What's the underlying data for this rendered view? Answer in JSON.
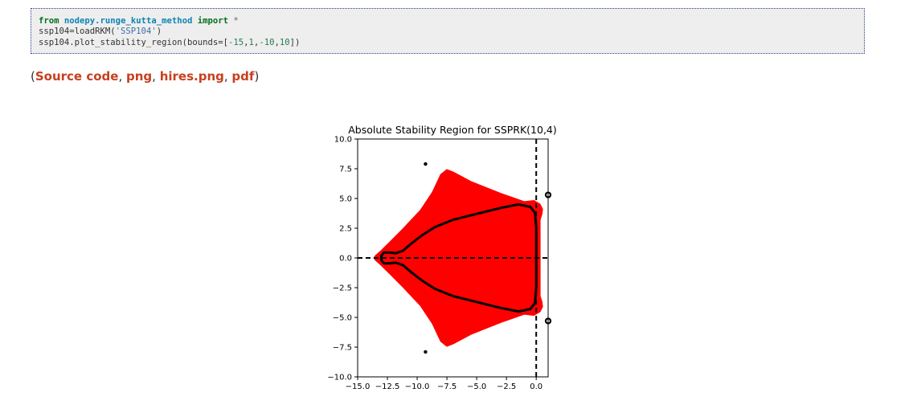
{
  "code": {
    "line1": {
      "kw_from": "from",
      "module": "nodepy.runge_kutta_method",
      "kw_import": "import",
      "star": "*"
    },
    "line2": {
      "prefix": "ssp104=loadRKM(",
      "string": "'SSP104'",
      "suffix": ")"
    },
    "line3": {
      "prefix": "ssp104.plot_stability_region(bounds=[",
      "n1": "-15",
      "c1": ",",
      "n2": "1",
      "c2": ",",
      "n3": "-10",
      "c3": ",",
      "n4": "10",
      "suffix": "])"
    }
  },
  "links": {
    "open": "(",
    "source_code": "Source code",
    "png": "png",
    "hires_png": "hires.png",
    "pdf": "pdf",
    "sep1": ", ",
    "sep2": ", ",
    "sep3": ", ",
    "close": ")"
  },
  "chart_data": {
    "type": "area",
    "title": "Absolute Stability Region for SSPRK(10,4)",
    "xlabel": "",
    "ylabel": "",
    "xlim": [
      -15,
      1
    ],
    "ylim": [
      -10,
      10
    ],
    "xticks": [
      -15.0,
      -12.5,
      -10.0,
      -7.5,
      -5.0,
      -2.5,
      0.0
    ],
    "xtick_labels": [
      "−15.0",
      "−12.5",
      "−10.0",
      "−7.5",
      "−5.0",
      "−2.5",
      "0.0"
    ],
    "yticks": [
      10.0,
      7.5,
      5.0,
      2.5,
      0.0,
      -2.5,
      -5.0,
      -7.5,
      -10.0
    ],
    "ytick_labels": [
      "10.0",
      "7.5",
      "5.0",
      "2.5",
      "0.0",
      "−2.5",
      "−5.0",
      "−7.5",
      "−10.0"
    ],
    "stability_region": {
      "color": "#ff0000",
      "boundary": [
        [
          0.3,
          0.0
        ],
        [
          0.3,
          2.0
        ],
        [
          0.3,
          3.2
        ],
        [
          0.45,
          3.7
        ],
        [
          0.5,
          4.1
        ],
        [
          0.3,
          4.5
        ],
        [
          -0.2,
          4.8
        ],
        [
          -1.0,
          4.7
        ],
        [
          -3.0,
          5.4
        ],
        [
          -5.5,
          6.4
        ],
        [
          -7.0,
          7.2
        ],
        [
          -7.5,
          7.4
        ],
        [
          -8.0,
          7.0
        ],
        [
          -8.7,
          5.5
        ],
        [
          -9.7,
          4.0
        ],
        [
          -11.3,
          2.3
        ],
        [
          -12.3,
          1.3
        ],
        [
          -13.0,
          0.6
        ],
        [
          -13.5,
          0.15
        ],
        [
          -13.6,
          0.0
        ],
        [
          -13.5,
          -0.15
        ],
        [
          -13.0,
          -0.6
        ],
        [
          -12.3,
          -1.3
        ],
        [
          -11.3,
          -2.3
        ],
        [
          -9.7,
          -4.0
        ],
        [
          -8.7,
          -5.5
        ],
        [
          -8.0,
          -7.0
        ],
        [
          -7.5,
          -7.4
        ],
        [
          -7.0,
          -7.2
        ],
        [
          -5.5,
          -6.4
        ],
        [
          -3.0,
          -5.4
        ],
        [
          -1.0,
          -4.7
        ],
        [
          -0.2,
          -4.8
        ],
        [
          0.3,
          -4.5
        ],
        [
          0.5,
          -4.1
        ],
        [
          0.45,
          -3.7
        ],
        [
          0.3,
          -3.2
        ],
        [
          0.3,
          -2.0
        ]
      ]
    },
    "order_star_curve": {
      "color": "#000000",
      "points": [
        [
          0.0,
          0.0
        ],
        [
          0.0,
          2.5
        ],
        [
          -0.1,
          3.8
        ],
        [
          -0.5,
          4.3
        ],
        [
          -1.5,
          4.5
        ],
        [
          -3.0,
          4.2
        ],
        [
          -5.0,
          3.7
        ],
        [
          -7.0,
          3.2
        ],
        [
          -8.5,
          2.6
        ],
        [
          -9.6,
          1.9
        ],
        [
          -10.5,
          1.2
        ],
        [
          -11.2,
          0.6
        ],
        [
          -11.8,
          0.4
        ],
        [
          -12.3,
          0.45
        ],
        [
          -12.8,
          0.45
        ],
        [
          -13.0,
          0.2
        ],
        [
          -13.0,
          -0.2
        ],
        [
          -12.8,
          -0.45
        ],
        [
          -12.3,
          -0.45
        ],
        [
          -11.8,
          -0.4
        ],
        [
          -11.2,
          -0.6
        ],
        [
          -10.5,
          -1.2
        ],
        [
          -9.6,
          -1.9
        ],
        [
          -8.5,
          -2.6
        ],
        [
          -7.0,
          -3.2
        ],
        [
          -5.0,
          -3.7
        ],
        [
          -3.0,
          -4.2
        ],
        [
          -1.5,
          -4.5
        ],
        [
          -0.5,
          -4.3
        ],
        [
          -0.1,
          -3.8
        ],
        [
          0.0,
          -2.5
        ],
        [
          0.0,
          0.0
        ]
      ]
    },
    "eigen_points": [
      [
        -9.3,
        7.9
      ],
      [
        -9.3,
        -7.9
      ]
    ],
    "edge_circles": [
      [
        1.0,
        5.3
      ],
      [
        1.0,
        -5.3
      ]
    ],
    "axis_lines": {
      "x": 0,
      "y": 0,
      "style": "dashed"
    },
    "grid": false,
    "legend": "none"
  }
}
